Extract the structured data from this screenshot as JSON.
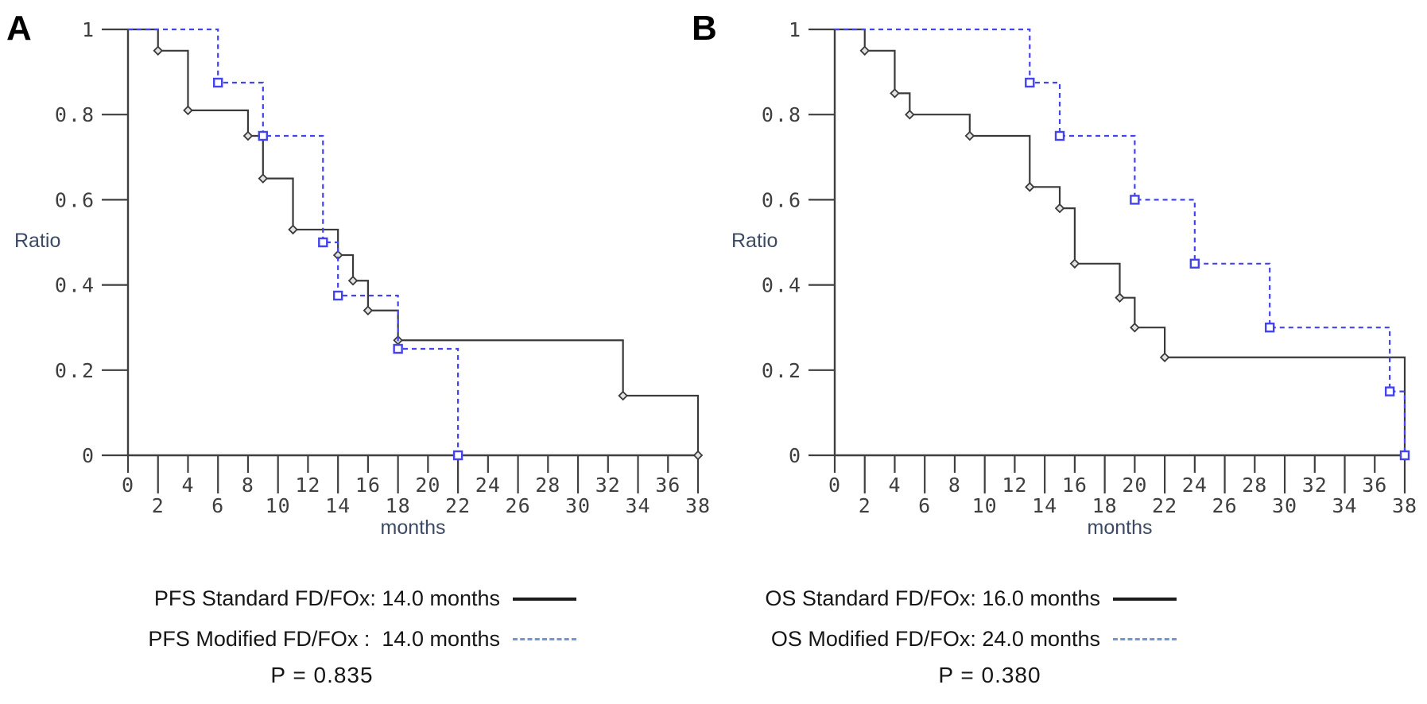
{
  "figure": {
    "type": "kaplan-meier-survival-figure",
    "background": "#ffffff",
    "axis_color": "#3f3f3f",
    "axis_label_color": "#3c4a63",
    "black_series_color": "#3a3a3a",
    "blue_series_color": "#4343ef",
    "legend_dash_sample_color": "#6f96d8"
  },
  "chart_data": [
    {
      "type": "line",
      "panel_label": "A",
      "xlabel": "months",
      "ylabel": "Ratio",
      "xlim": [
        0,
        38
      ],
      "ylim": [
        0,
        1
      ],
      "xticks": [
        0,
        2,
        4,
        6,
        8,
        10,
        12,
        14,
        16,
        18,
        20,
        22,
        24,
        26,
        28,
        30,
        32,
        34,
        36,
        38
      ],
      "yticks": [
        0,
        0.2,
        0.4,
        0.6,
        0.8,
        1
      ],
      "ytick_labels": [
        "0",
        "0.2",
        "0.4",
        "0.6",
        "0.8",
        "1"
      ],
      "grid": false,
      "legend_position": "below",
      "series": [
        {
          "name": "PFS Standard FD/FOx",
          "style": "solid",
          "color": "#3a3a3a",
          "marker": "diamond",
          "steps": [
            [
              0,
              1
            ],
            [
              2,
              0.95
            ],
            [
              4,
              0.81
            ],
            [
              8,
              0.75
            ],
            [
              9,
              0.65
            ],
            [
              11,
              0.53
            ],
            [
              14,
              0.47
            ],
            [
              15,
              0.41
            ],
            [
              16,
              0.34
            ],
            [
              18,
              0.27
            ],
            [
              33,
              0.14
            ],
            [
              38,
              0
            ]
          ]
        },
        {
          "name": "PFS Modified FD/FOx",
          "style": "dashed",
          "color": "#4343ef",
          "marker": "square",
          "steps": [
            [
              0,
              1
            ],
            [
              6,
              0.875
            ],
            [
              9,
              0.75
            ],
            [
              13,
              0.5
            ],
            [
              14,
              0.375
            ],
            [
              18,
              0.25
            ],
            [
              22,
              0
            ]
          ]
        }
      ],
      "legend": [
        {
          "label": "PFS Standard FD/FOx: 14.0 months",
          "style": "solid"
        },
        {
          "label": "PFS Modified FD/FOx :  14.0 months",
          "style": "dashed"
        }
      ],
      "pvalue": "P = 0.835",
      "median_months": {
        "standard": 14.0,
        "modified": 14.0
      }
    },
    {
      "type": "line",
      "panel_label": "B",
      "xlabel": "months",
      "ylabel": "Ratio",
      "xlim": [
        0,
        38
      ],
      "ylim": [
        0,
        1
      ],
      "xticks": [
        0,
        2,
        4,
        6,
        8,
        10,
        12,
        14,
        16,
        18,
        20,
        22,
        24,
        26,
        28,
        30,
        32,
        34,
        36,
        38
      ],
      "yticks": [
        0,
        0.2,
        0.4,
        0.6,
        0.8,
        1
      ],
      "ytick_labels": [
        "0",
        "0.2",
        "0.4",
        "0.6",
        "0.8",
        "1"
      ],
      "grid": false,
      "legend_position": "below",
      "series": [
        {
          "name": "OS Standard FD/FOx",
          "style": "solid",
          "color": "#3a3a3a",
          "marker": "diamond",
          "steps": [
            [
              0,
              1
            ],
            [
              2,
              0.95
            ],
            [
              4,
              0.85
            ],
            [
              5,
              0.8
            ],
            [
              9,
              0.75
            ],
            [
              13,
              0.63
            ],
            [
              15,
              0.58
            ],
            [
              16,
              0.45
            ],
            [
              19,
              0.37
            ],
            [
              20,
              0.3
            ],
            [
              22,
              0.23
            ],
            [
              38,
              0
            ]
          ]
        },
        {
          "name": "OS Modified FD/FOx",
          "style": "dashed",
          "color": "#4343ef",
          "marker": "square",
          "steps": [
            [
              0,
              1
            ],
            [
              13,
              0.875
            ],
            [
              15,
              0.75
            ],
            [
              20,
              0.6
            ],
            [
              24,
              0.45
            ],
            [
              29,
              0.3
            ],
            [
              37,
              0.15
            ],
            [
              38,
              0
            ]
          ]
        }
      ],
      "legend": [
        {
          "label": "OS Standard FD/FOx: 16.0 months",
          "style": "solid"
        },
        {
          "label": "OS Modified FD/FOx: 24.0 months",
          "style": "dashed"
        }
      ],
      "pvalue": "P = 0.380",
      "median_months": {
        "standard": 16.0,
        "modified": 24.0
      }
    }
  ]
}
